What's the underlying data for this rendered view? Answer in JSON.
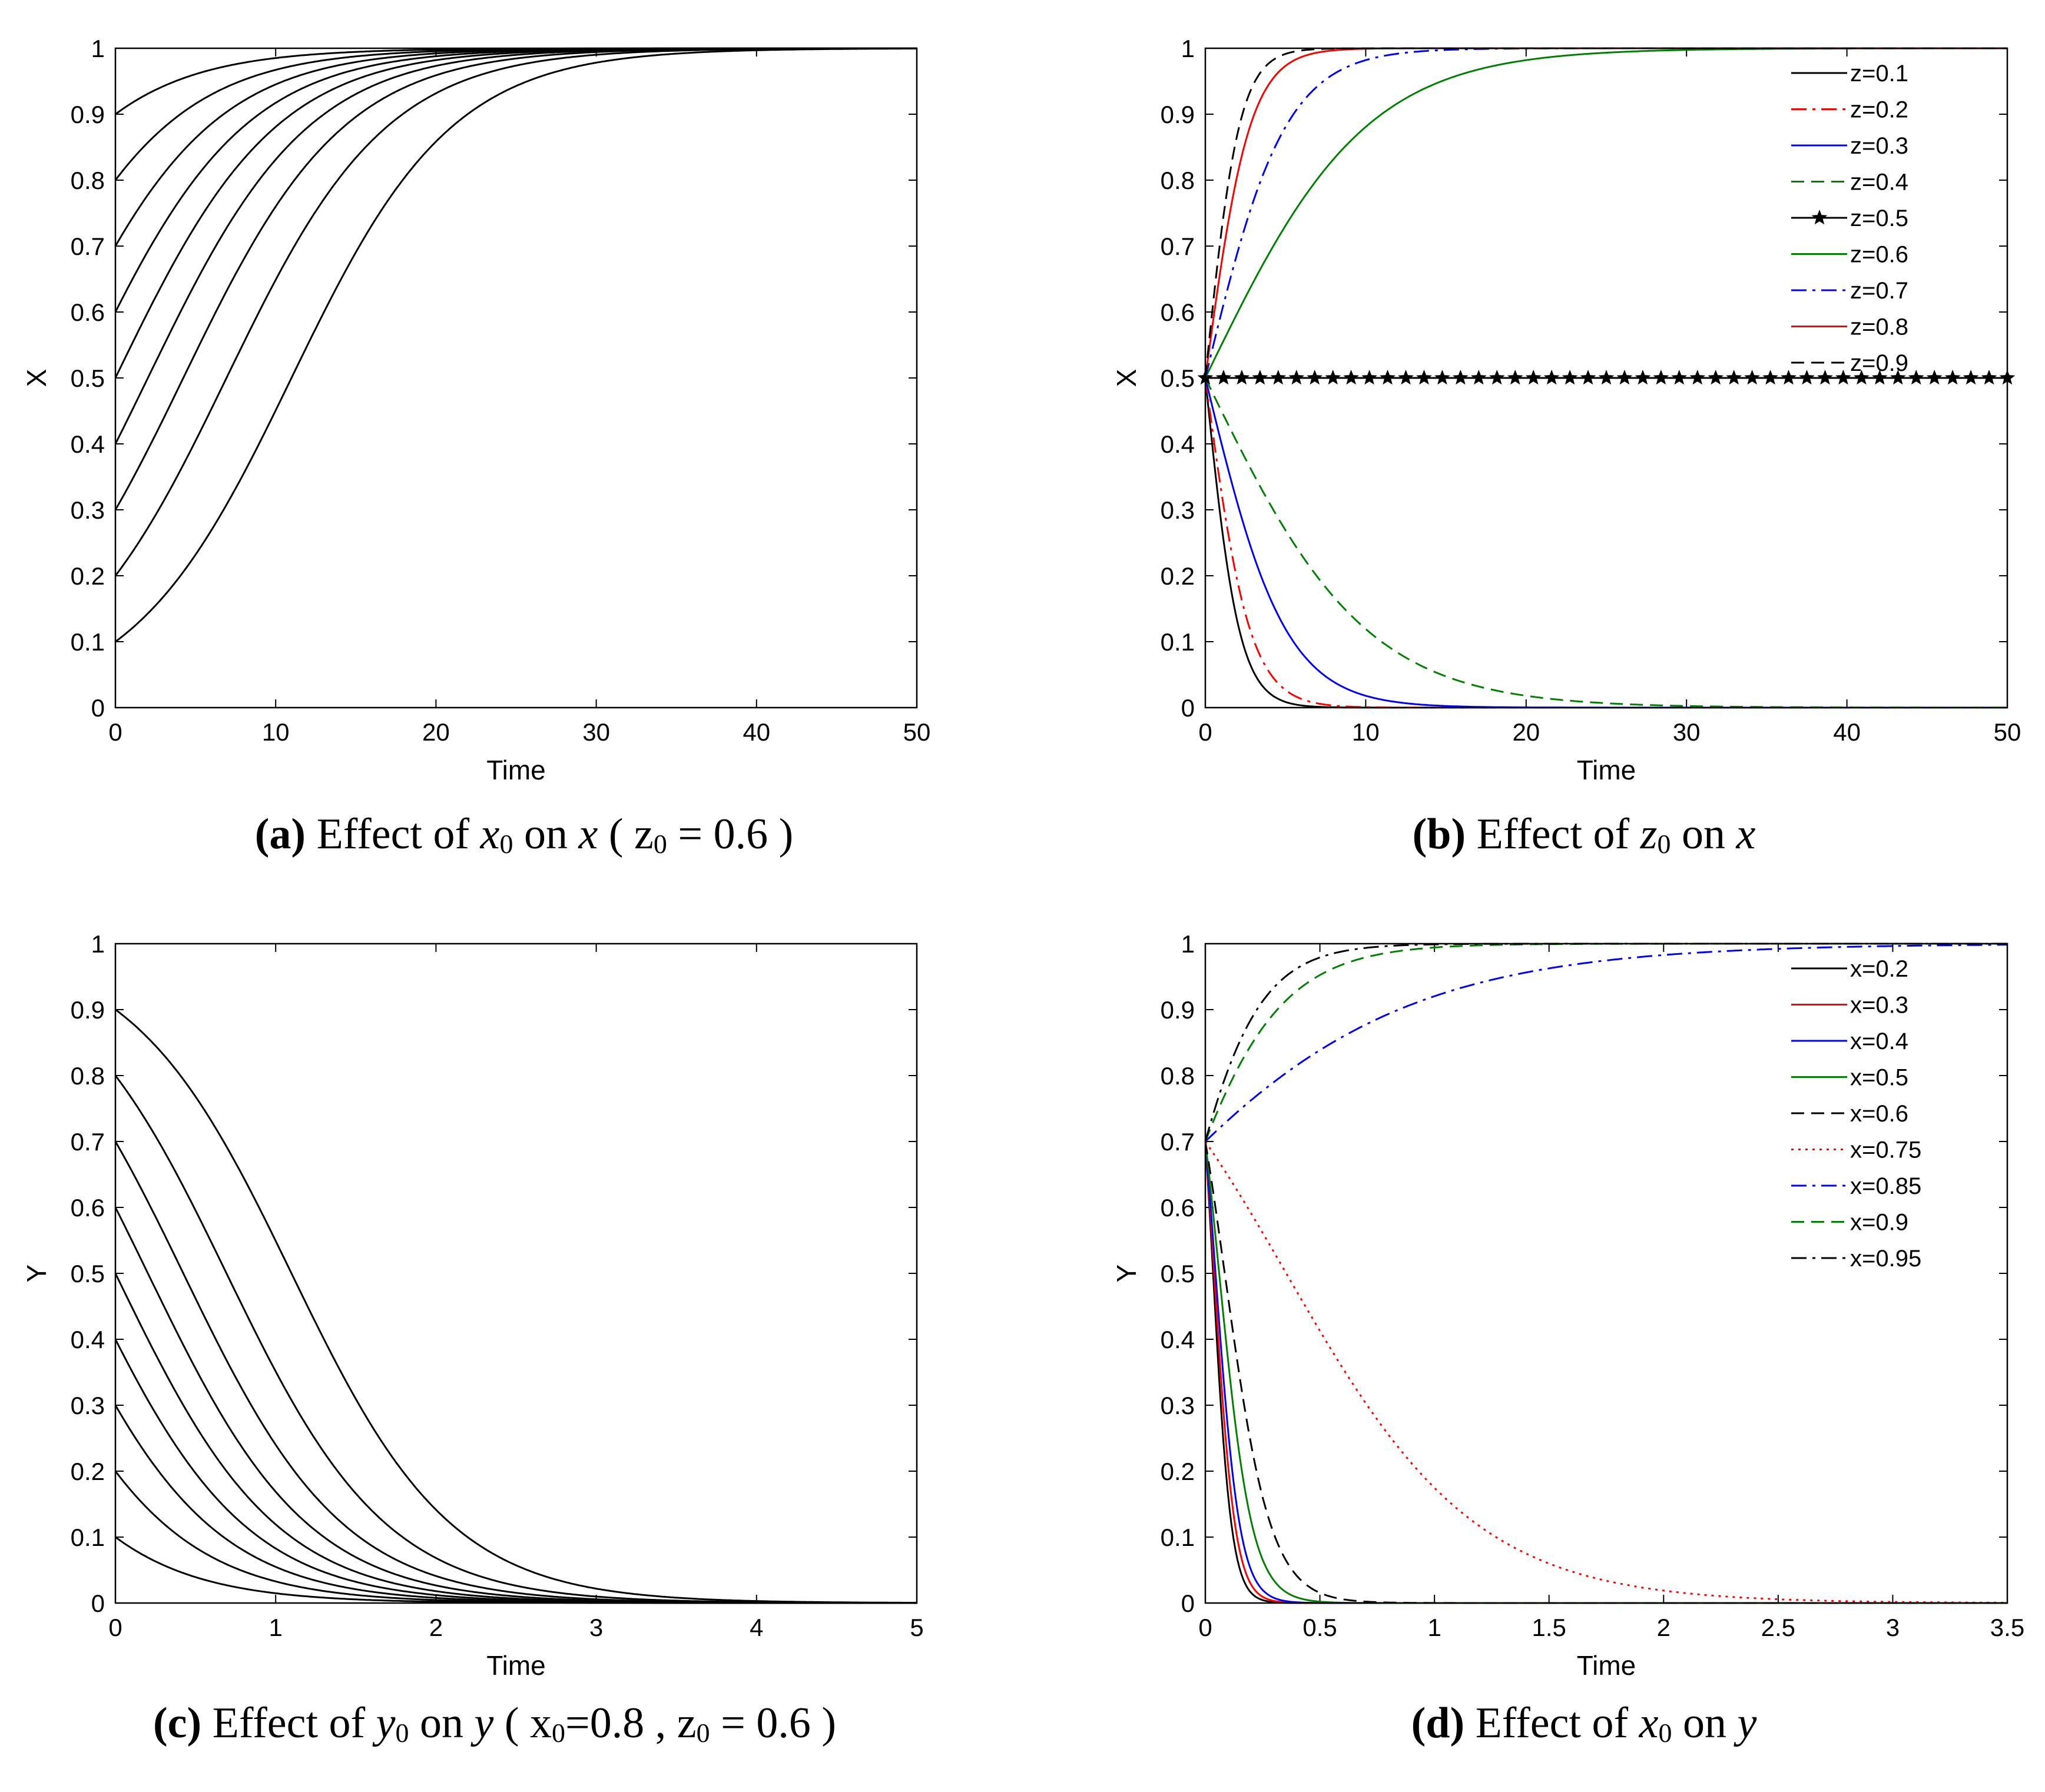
{
  "chart_data": [
    {
      "id": "a",
      "type": "line",
      "xlabel": "Time",
      "ylabel": "X",
      "xlim": [
        0,
        50
      ],
      "ylim": [
        0,
        1
      ],
      "xticks": [
        "0",
        "10",
        "20",
        "30",
        "40",
        "50"
      ],
      "yticks": [
        "0",
        "0.1",
        "0.2",
        "0.3",
        "0.4",
        "0.5",
        "0.6",
        "0.7",
        "0.8",
        "0.9",
        "1"
      ],
      "model": "logistic",
      "rate": 0.2,
      "initial_values": [
        0.1,
        0.2,
        0.3,
        0.4,
        0.5,
        0.6,
        0.7,
        0.8,
        0.9
      ],
      "color": "#000000",
      "caption": {
        "label": "(a)",
        "pre": " Effect of ",
        "var1": "x",
        "var1_sub": "0",
        "mid": " on ",
        "var2": "x",
        "params": " ( z",
        "params_sub": "0",
        "params_tail": " = 0.6 )"
      }
    },
    {
      "id": "b",
      "type": "line",
      "xlabel": "Time",
      "ylabel": "X",
      "xlim": [
        0,
        50
      ],
      "ylim": [
        0,
        1
      ],
      "xticks": [
        "0",
        "10",
        "20",
        "30",
        "40",
        "50"
      ],
      "yticks": [
        "0",
        "0.1",
        "0.2",
        "0.3",
        "0.4",
        "0.5",
        "0.6",
        "0.7",
        "0.8",
        "0.9",
        "1"
      ],
      "model": "logistic",
      "x0": 0.5,
      "legend_position": "top-right",
      "series": [
        {
          "name": "z=0.1",
          "rate": -0.95,
          "color": "#000000",
          "style": "solid"
        },
        {
          "name": "z=0.2",
          "rate": -0.72,
          "color": "#ff0000",
          "style": "dashdot"
        },
        {
          "name": "z=0.3",
          "rate": -0.4,
          "color": "#0000ff",
          "style": "solid"
        },
        {
          "name": "z=0.4",
          "rate": -0.2,
          "color": "#008000",
          "style": "dashed"
        },
        {
          "name": "z=0.5",
          "rate": 0.0,
          "color": "#000000",
          "style": "solid",
          "marker": "star"
        },
        {
          "name": "z=0.6",
          "rate": 0.2,
          "color": "#008000",
          "style": "solid"
        },
        {
          "name": "z=0.7",
          "rate": 0.4,
          "color": "#0000ff",
          "style": "dashdot"
        },
        {
          "name": "z=0.8",
          "rate": 0.72,
          "color": "#ff0000",
          "style": "solid"
        },
        {
          "name": "z=0.9",
          "rate": 0.95,
          "color": "#000000",
          "style": "dashed"
        }
      ],
      "caption": {
        "label": "(b)",
        "pre": " Effect of ",
        "var1": "z",
        "var1_sub": "0",
        "mid": " on ",
        "var2": "x"
      }
    },
    {
      "id": "c",
      "type": "line",
      "xlabel": "Time",
      "ylabel": "Y",
      "xlim": [
        0,
        5
      ],
      "ylim": [
        0,
        1
      ],
      "xticks": [
        "0",
        "1",
        "2",
        "3",
        "4",
        "5"
      ],
      "yticks": [
        "0",
        "0.1",
        "0.2",
        "0.3",
        "0.4",
        "0.5",
        "0.6",
        "0.7",
        "0.8",
        "0.9",
        "1"
      ],
      "model": "logistic",
      "rate": -2.0,
      "initial_values": [
        0.1,
        0.2,
        0.3,
        0.4,
        0.5,
        0.6,
        0.7,
        0.8,
        0.9
      ],
      "color": "#000000",
      "caption": {
        "label": "(c)",
        "pre": " Effect of ",
        "var1": "y",
        "var1_sub": "0",
        "mid": " on ",
        "var2": "y",
        "params": " ( x",
        "params_sub": "0",
        "params_tail": "=0.8 , z",
        "params_sub2": "0",
        "params_tail2": " = 0.6 )"
      }
    },
    {
      "id": "d",
      "type": "line",
      "xlabel": "Time",
      "ylabel": "Y",
      "xlim": [
        0,
        3.5
      ],
      "ylim": [
        0,
        1
      ],
      "xticks": [
        "0",
        "0.5",
        "1",
        "1.5",
        "2",
        "2.5",
        "3",
        "3.5"
      ],
      "yticks": [
        "0",
        "0.1",
        "0.2",
        "0.3",
        "0.4",
        "0.5",
        "0.6",
        "0.7",
        "0.8",
        "0.9",
        "1"
      ],
      "model": "logistic",
      "y0": 0.7,
      "legend_position": "top-right",
      "series": [
        {
          "name": "x=0.2",
          "rate": -25,
          "color": "#000000",
          "style": "solid"
        },
        {
          "name": "x=0.3",
          "rate": -22,
          "color": "#ff0000",
          "style": "solid"
        },
        {
          "name": "x=0.4",
          "rate": -19,
          "color": "#0000ff",
          "style": "solid"
        },
        {
          "name": "x=0.5",
          "rate": -14,
          "color": "#008000",
          "style": "solid"
        },
        {
          "name": "x=0.6",
          "rate": -10,
          "color": "#000000",
          "style": "dashed"
        },
        {
          "name": "x=0.75",
          "rate": -2.4,
          "color": "#ff0000",
          "style": "dotted"
        },
        {
          "name": "x=0.85",
          "rate": 1.6,
          "color": "#0000ff",
          "style": "dashdot"
        },
        {
          "name": "x=0.9",
          "rate": 4.3,
          "color": "#008000",
          "style": "dashed"
        },
        {
          "name": "x=0.95",
          "rate": 6.0,
          "color": "#000000",
          "style": "dashdot"
        }
      ],
      "caption": {
        "label": "(d)",
        "pre": " Effect of ",
        "var1": "x",
        "var1_sub": "0",
        "mid": " on ",
        "var2": "y"
      }
    }
  ]
}
